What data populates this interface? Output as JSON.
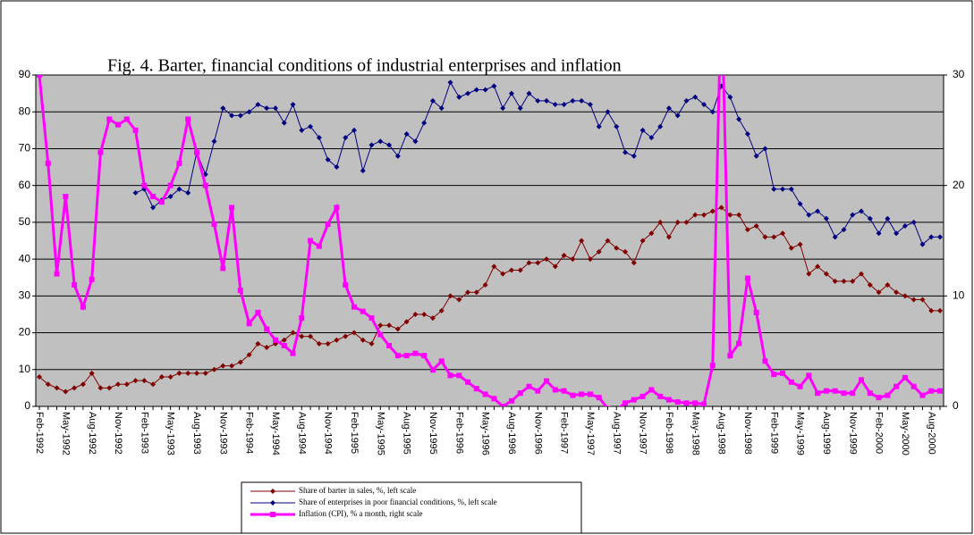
{
  "chart_data": {
    "type": "line",
    "title": "Fig. 4. Barter, financial conditions of industrial enterprises and inflation",
    "categories": [
      "Feb-1992",
      null,
      null,
      "May-1992",
      null,
      null,
      "Aug-1992",
      null,
      null,
      "Nov-1992",
      null,
      null,
      "Feb-1993",
      null,
      null,
      "May-1993",
      null,
      null,
      "Aug-1993",
      null,
      null,
      "Nov-1993",
      null,
      null,
      "Feb-1994",
      null,
      null,
      "May-1994",
      null,
      null,
      "Aug-1994",
      null,
      null,
      "Nov-1994",
      null,
      null,
      "Feb-1995",
      null,
      null,
      "May-1995",
      null,
      null,
      "Aug-1995",
      null,
      null,
      "Nov-1995",
      null,
      null,
      "Feb-1996",
      null,
      null,
      "May-1996",
      null,
      null,
      "Aug-1996",
      null,
      null,
      "Nov-1996",
      null,
      null,
      "Feb-1997",
      null,
      null,
      "May-1997",
      null,
      null,
      "Aug-1997",
      null,
      null,
      "Nov-1997",
      null,
      null,
      "Feb-1998",
      null,
      null,
      "May-1998",
      null,
      null,
      "Aug-1998",
      null,
      null,
      "Nov-1998",
      null,
      null,
      "Feb-1999",
      null,
      null,
      "May-1999",
      null,
      null,
      "Aug-1999",
      null,
      null,
      "Nov-1999",
      null,
      null,
      "Feb-2000",
      null,
      null,
      "May-2000",
      null,
      null,
      "Aug-2000",
      null
    ],
    "series": [
      {
        "name": "Share of barter in sales, %, left scale",
        "color": "#800000",
        "marker": "diamond",
        "axis": "y",
        "values": [
          8,
          6,
          5,
          4,
          5,
          6,
          9,
          5,
          5,
          6,
          6,
          7,
          7,
          6,
          8,
          8,
          9,
          9,
          9,
          9,
          10,
          11,
          11,
          12,
          14,
          17,
          16,
          17,
          18,
          20,
          19,
          19,
          17,
          17,
          18,
          19,
          20,
          18,
          17,
          22,
          22,
          21,
          23,
          25,
          25,
          24,
          26,
          30,
          29,
          31,
          31,
          33,
          38,
          36,
          37,
          37,
          39,
          39,
          40,
          38,
          41,
          40,
          45,
          40,
          42,
          45,
          43,
          42,
          39,
          45,
          47,
          50,
          46,
          50,
          50,
          52,
          52,
          53,
          54,
          52,
          52,
          48,
          49,
          46,
          46,
          47,
          43,
          44,
          36,
          38,
          36,
          34,
          34,
          34,
          36,
          33,
          31,
          33,
          31,
          30,
          29,
          29,
          26,
          26
        ]
      },
      {
        "name": "Share of enterprises in poor financial conditions, %, left scale",
        "color": "#000080",
        "marker": "diamond",
        "axis": "y",
        "values": [
          null,
          null,
          null,
          null,
          null,
          null,
          null,
          null,
          null,
          null,
          null,
          58,
          59,
          54,
          56,
          57,
          59,
          58,
          69,
          63,
          72,
          81,
          79,
          79,
          80,
          82,
          81,
          81,
          77,
          82,
          75,
          76,
          73,
          67,
          65,
          73,
          75,
          64,
          71,
          72,
          71,
          68,
          74,
          72,
          77,
          83,
          81,
          88,
          84,
          85,
          86,
          86,
          87,
          81,
          85,
          81,
          85,
          83,
          83,
          82,
          82,
          83,
          83,
          82,
          76,
          80,
          76,
          69,
          68,
          75,
          73,
          76,
          81,
          79,
          83,
          84,
          82,
          80,
          87,
          84,
          78,
          74,
          68,
          70,
          59,
          59,
          59,
          55,
          52,
          53,
          51,
          46,
          48,
          52,
          53,
          51,
          47,
          51,
          47,
          49,
          50,
          44,
          46,
          46
        ]
      },
      {
        "name": "Inflation (CPI), % a month, right scale",
        "color": "#ff00ff",
        "marker": "square",
        "axis": "y2",
        "values": [
          30,
          22,
          12,
          19,
          11,
          9,
          11.5,
          23,
          26,
          25.5,
          26,
          25,
          20,
          19,
          18.5,
          20,
          22,
          26,
          23,
          20,
          16.5,
          12.5,
          18,
          10.5,
          7.5,
          8.5,
          7,
          6,
          5.5,
          4.8,
          8,
          15,
          14.5,
          16.5,
          18,
          11,
          9,
          8.6,
          8,
          6.5,
          5.5,
          4.6,
          4.6,
          4.8,
          4.6,
          3.3,
          4.1,
          2.8,
          2.8,
          2.2,
          1.6,
          1.1,
          0.7,
          0,
          0.5,
          1.2,
          1.8,
          1.4,
          2.3,
          1.5,
          1.4,
          1,
          1.1,
          1.1,
          0.8,
          -0.2,
          -0.3,
          0.3,
          0.6,
          0.9,
          1.5,
          0.9,
          0.6,
          0.4,
          0.3,
          0.3,
          0.2,
          3.7,
          38,
          4.6,
          5.7,
          11.6,
          8.5,
          4.1,
          2.9,
          3,
          2.2,
          1.8,
          2.8,
          1.2,
          1.4,
          1.4,
          1.2,
          1.2,
          2.4,
          1.2,
          0.8,
          1,
          1.8,
          2.6,
          1.8,
          1,
          1.4,
          1.4
        ]
      }
    ],
    "ylim": [
      0,
      90
    ],
    "yticks": [
      0,
      10,
      20,
      30,
      40,
      50,
      60,
      70,
      80,
      90
    ],
    "y2lim": [
      0,
      30
    ],
    "y2ticks": [
      0,
      10,
      20,
      30
    ],
    "grid": true,
    "legend": "bottom"
  }
}
